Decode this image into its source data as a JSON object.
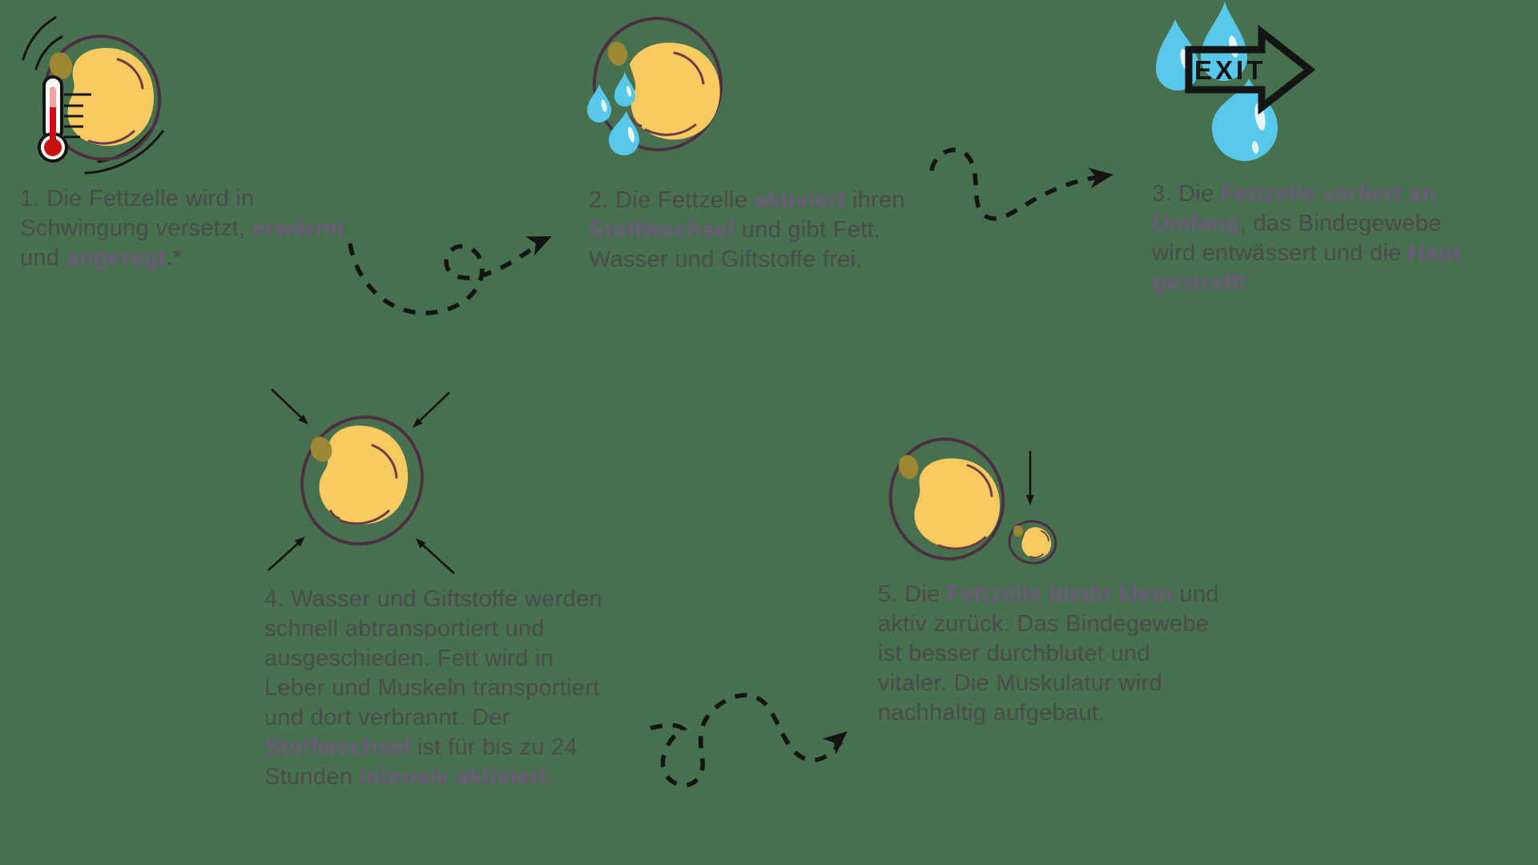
{
  "colors": {
    "background": "#47704F",
    "body-text": "#4B4B4E",
    "highlight": "#6D5979",
    "arrow": "#141414",
    "cell-fill": "#F9CA5F",
    "cell-outline": "#4C2E43",
    "cell-accent": "#6E3C49",
    "nucleus": "#9C8733",
    "drop": "#58C8EA",
    "drop-shine": "#FFFFFF",
    "thermo-red": "#C90F0F",
    "thermo-pink": "#F2A7A0"
  },
  "icons": {
    "exit_label": "EXIT",
    "step1": "fat-cell-thermometer-vibration",
    "step2": "fat-cell-water-drops",
    "step3": "water-drops-exit-arrow",
    "step4": "fat-cell-inward-arrows",
    "step5": "fat-cell-big-and-small"
  },
  "steps": [
    {
      "number": "1",
      "lines": [
        [
          {
            "t": "1. Die Fettzelle wird in"
          }
        ],
        [
          {
            "t": "Schwingung versetzt, "
          },
          {
            "t": "erwärmt",
            "h": true
          }
        ],
        [
          {
            "t": "und "
          },
          {
            "t": "angeregt",
            "h": true
          },
          {
            "t": ".*"
          }
        ]
      ]
    },
    {
      "number": "2",
      "lines": [
        [
          {
            "t": "2. Die Fettzelle "
          },
          {
            "t": "aktiviert",
            "h": true
          },
          {
            "t": " ihren"
          }
        ],
        [
          {
            "t": "Stoffwechsel",
            "h": true
          },
          {
            "t": " und gibt Fett,"
          }
        ],
        [
          {
            "t": "Wasser und Giftstoffe frei."
          }
        ]
      ]
    },
    {
      "number": "3",
      "lines": [
        [
          {
            "t": "3. Die "
          },
          {
            "t": "Fettzelle verliert an",
            "h": true
          }
        ],
        [
          {
            "t": "Umfang",
            "h": true
          },
          {
            "t": ", das Bindegewebe"
          }
        ],
        [
          {
            "t": "wird entwässert und die "
          },
          {
            "t": "Haut",
            "h": true
          }
        ],
        [
          {
            "t": "gestrafft.",
            "h": true
          }
        ]
      ]
    },
    {
      "number": "4",
      "lines": [
        [
          {
            "t": "4. Wasser und Giftstoffe werden"
          }
        ],
        [
          {
            "t": "schnell abtransportiert und"
          }
        ],
        [
          {
            "t": "ausgeschieden. Fett wird in"
          }
        ],
        [
          {
            "t": "Leber und Muskeln transportiert"
          }
        ],
        [
          {
            "t": "und dort verbrannt. Der"
          }
        ],
        [
          {
            "t": "Stoffwechsel",
            "h": true
          },
          {
            "t": " ist für bis zu 24"
          }
        ],
        [
          {
            "t": "Stunden "
          },
          {
            "t": "intensiv aktiviert.",
            "h": true
          }
        ]
      ]
    },
    {
      "number": "5",
      "lines": [
        [
          {
            "t": "5. Die "
          },
          {
            "t": "Fettzelle bleibt klein",
            "h": true
          },
          {
            "t": " und"
          }
        ],
        [
          {
            "t": "aktiv zurück. Das Bindegewebe"
          }
        ],
        [
          {
            "t": "ist besser durchblutet und"
          }
        ],
        [
          {
            "t": "vitaler. Die Muskulatur wird"
          }
        ],
        [
          {
            "t": "nachhaltig aufgebaut."
          }
        ]
      ]
    }
  ]
}
